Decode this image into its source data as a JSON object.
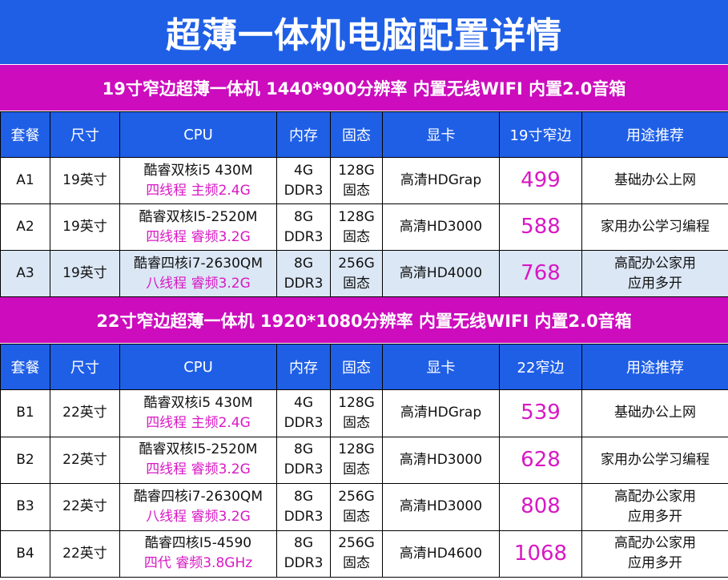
{
  "title": "超薄一体机电脑配置详情",
  "sections": [
    {
      "banner": "19寸窄边超薄一体机  1440*900分辨率 内置无线WIFI 内置2.0音箱",
      "headers": [
        "套餐",
        "尺寸",
        "CPU",
        "内存",
        "固态",
        "显卡",
        "19寸窄边",
        "用途推荐"
      ],
      "rows": [
        {
          "id": "A1",
          "size": "19英寸",
          "cpu1": "酷睿双核i5 430M",
          "cpu2": "四线程 主频2.4G",
          "mem1": "4G",
          "mem2": "DDR3",
          "ssd1": "128G",
          "ssd2": "固态",
          "gpu": "高清HDGrap",
          "price": "499",
          "use1": "基础办公上网",
          "use2": ""
        },
        {
          "id": "A2",
          "size": "19英寸",
          "cpu1": "酷睿双核I5-2520M",
          "cpu2": "四线程 睿频3.2G",
          "mem1": "8G",
          "mem2": "DDR3",
          "ssd1": "128G",
          "ssd2": "固态",
          "gpu": "高清HD3000",
          "price": "588",
          "use1": "家用办公学习编程",
          "use2": ""
        },
        {
          "id": "A3",
          "size": "19英寸",
          "cpu1": "酷睿四核i7-2630QM",
          "cpu2": "八线程 睿频3.2G",
          "mem1": "8G",
          "mem2": "DDR3",
          "ssd1": "256G",
          "ssd2": "固态",
          "gpu": "高清HD4000",
          "price": "768",
          "use1": "高配办公家用",
          "use2": "应用多开"
        }
      ]
    },
    {
      "banner": "22寸窄边超薄一体机  1920*1080分辨率 内置无线WIFI 内置2.0音箱",
      "headers": [
        "套餐",
        "尺寸",
        "CPU",
        "内存",
        "固态",
        "显卡",
        "22窄边",
        "用途推荐"
      ],
      "rows": [
        {
          "id": "B1",
          "size": "22英寸",
          "cpu1": "酷睿双核i5 430M",
          "cpu2": "四线程 主频2.4G",
          "mem1": "4G",
          "mem2": "DDR3",
          "ssd1": "128G",
          "ssd2": "固态",
          "gpu": "高清HDGrap",
          "price": "539",
          "use1": "基础办公上网",
          "use2": ""
        },
        {
          "id": "B2",
          "size": "22英寸",
          "cpu1": "酷睿双核I5-2520M",
          "cpu2": "四线程 睿频3.2G",
          "mem1": "8G",
          "mem2": "DDR3",
          "ssd1": "128G",
          "ssd2": "固态",
          "gpu": "高清HD3000",
          "price": "628",
          "use1": "家用办公学习编程",
          "use2": ""
        },
        {
          "id": "B3",
          "size": "22英寸",
          "cpu1": "酷睿四核i7-2630QM",
          "cpu2": "八线程 睿频3.2G",
          "mem1": "8G",
          "mem2": "DDR3",
          "ssd1": "256G",
          "ssd2": "固态",
          "gpu": "高清HD3000",
          "price": "808",
          "use1": "高配办公家用",
          "use2": "应用多开"
        },
        {
          "id": "B4",
          "size": "22英寸",
          "cpu1": "酷睿四核I5-4590",
          "cpu2": "四代 睿频3.8GHz",
          "mem1": "8G",
          "mem2": "DDR3",
          "ssd1": "256G",
          "ssd2": "固态",
          "gpu": "高清HD4600",
          "price": "1068",
          "use1": "高配办公家用",
          "use2": "应用多开"
        }
      ]
    }
  ]
}
